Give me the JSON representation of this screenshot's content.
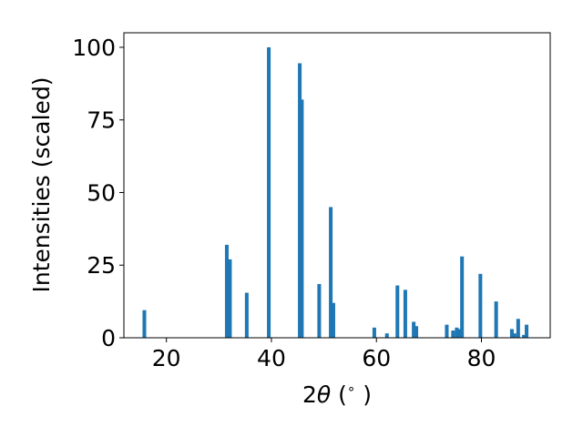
{
  "chart_data": {
    "type": "bar",
    "xlabel_prefix": "2",
    "xlabel_symbol": "θ",
    "xlabel_unit": " (",
    "xlabel_degree": "∘",
    "xlabel_close": ")",
    "ylabel": "Intensities (scaled)",
    "xlim": [
      11.9,
      93.1
    ],
    "ylim": [
      0,
      105
    ],
    "xticks": [
      20,
      40,
      60,
      80
    ],
    "yticks": [
      0,
      25,
      50,
      75,
      100
    ],
    "bar_width": 0.7,
    "color": "#1f77b4",
    "x": [
      15.8,
      31.5,
      32.1,
      35.3,
      39.5,
      45.4,
      45.8,
      49.1,
      51.3,
      51.8,
      59.6,
      62.0,
      64.0,
      65.5,
      67.1,
      67.6,
      73.4,
      74.6,
      75.3,
      75.8,
      76.3,
      79.8,
      82.8,
      85.8,
      86.3,
      87.0,
      88.1,
      88.6
    ],
    "values": [
      9.5,
      32,
      27,
      15.5,
      100,
      94.5,
      82,
      18.5,
      45,
      12,
      3.5,
      1.5,
      18,
      16.5,
      5.5,
      4,
      4.5,
      2.5,
      3.5,
      3,
      28,
      22,
      12.5,
      3,
      1.5,
      6.5,
      1,
      4.5
    ]
  }
}
